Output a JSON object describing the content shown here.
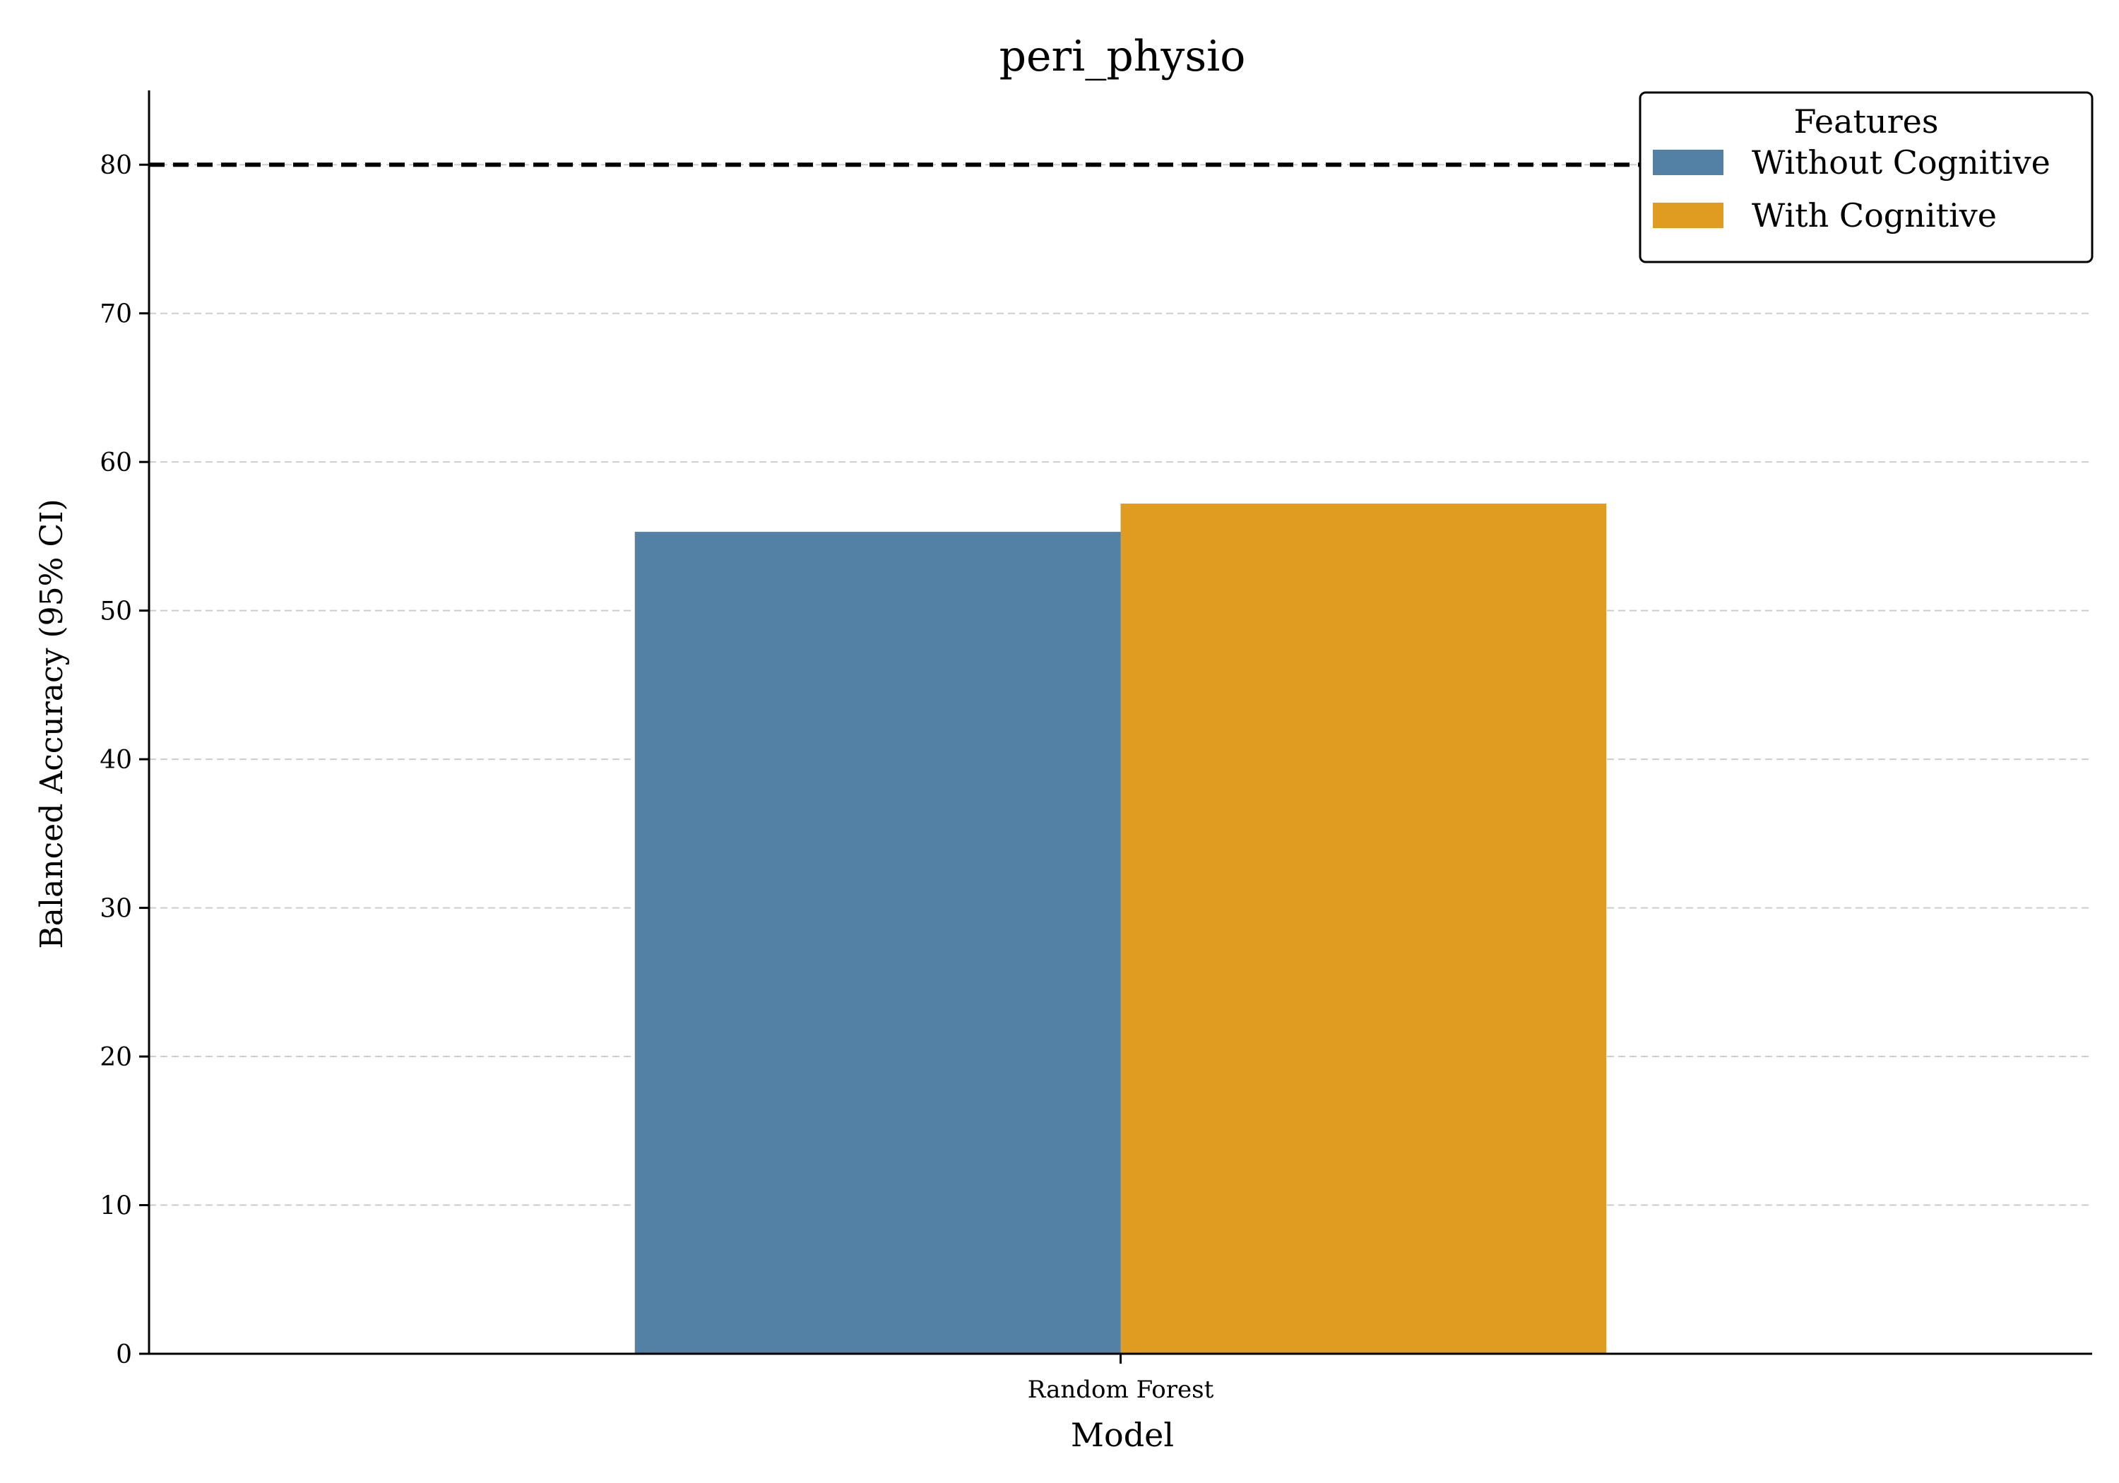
{
  "chart_data": {
    "type": "bar",
    "title": "peri_physio",
    "xlabel": "Model",
    "ylabel": "Balanced Accuracy (95% CI)",
    "categories": [
      "Random Forest"
    ],
    "series": [
      {
        "name": "Without Cognitive",
        "values": [
          55.3
        ],
        "color": "#5381a6"
      },
      {
        "name": "With Cognitive",
        "values": [
          57.2
        ],
        "color": "#e09b21"
      }
    ],
    "ylim": [
      0,
      85
    ],
    "yticks": [
      0,
      10,
      20,
      30,
      40,
      50,
      60,
      70,
      80
    ],
    "reference_line": {
      "y": 80,
      "style": "dashed",
      "color": "#000000"
    },
    "grid": {
      "y": true,
      "x": false,
      "style": "dashed",
      "color": "#cccccc"
    },
    "legend": {
      "title": "Features",
      "position": "top-right"
    }
  }
}
